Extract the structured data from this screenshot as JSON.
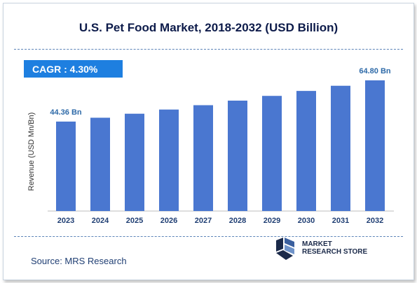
{
  "title": "U.S. Pet Food Market, 2018-2032 (USD Billion)",
  "cagr": "CAGR : 4.30%",
  "source": "Source: MRS Research",
  "logo": {
    "line1": "MARKET",
    "line2": "RESEARCH STORE"
  },
  "colors": {
    "bar": "#4a77d0",
    "cagr_bg": "#1e7fe0",
    "label": "#2e6aa8",
    "title": "#0d1b4a"
  },
  "chart_data": {
    "type": "bar",
    "title": "U.S. Pet Food Market, 2018-2032 (USD Billion)",
    "ylabel": "Revenue (USD Mn/Bn)",
    "xlabel": "",
    "categories": [
      "2023",
      "2024",
      "2025",
      "2026",
      "2027",
      "2028",
      "2029",
      "2030",
      "2031",
      "2032"
    ],
    "values": [
      44.36,
      46.27,
      48.26,
      50.33,
      52.49,
      54.75,
      57.1,
      59.56,
      62.12,
      64.8
    ],
    "data_labels": [
      {
        "index": 0,
        "text": "44.36 Bn"
      },
      {
        "index": 9,
        "text": "64.80 Bn"
      }
    ],
    "ylim": [
      0,
      64.8
    ],
    "grid": false
  }
}
